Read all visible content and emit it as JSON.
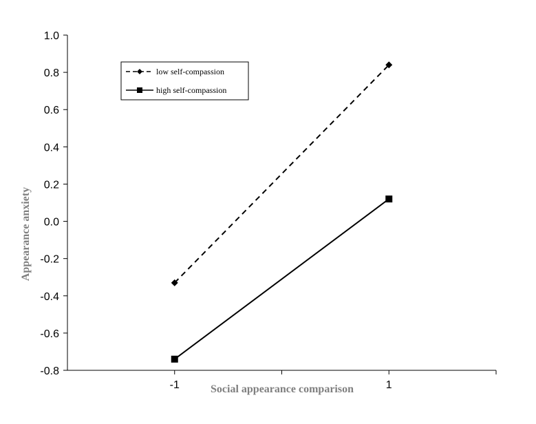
{
  "chart_data": {
    "type": "line",
    "title": "",
    "xlabel": "Social appearance comparison",
    "ylabel": "Appearance anxiety",
    "categories": [
      "-1",
      "1"
    ],
    "x": [
      -1,
      1
    ],
    "xlim": [
      -2,
      2
    ],
    "ylim": [
      -0.8,
      1.0
    ],
    "y_ticks": [
      "-0.8",
      "-0.6",
      "-0.4",
      "-0.2",
      "0.0",
      "0.2",
      "0.4",
      "0.6",
      "0.8",
      "1.0"
    ],
    "x_ticks": [
      "-1",
      "1"
    ],
    "grid": false,
    "legend": "top-left",
    "series": [
      {
        "name": "low self-compassion",
        "values": [
          -0.33,
          0.84
        ],
        "line_style": "dashed",
        "marker": "diamond",
        "color": "#000000"
      },
      {
        "name": "high self-compassion",
        "values": [
          -0.74,
          0.12
        ],
        "line_style": "solid",
        "marker": "square",
        "color": "#000000"
      }
    ]
  }
}
